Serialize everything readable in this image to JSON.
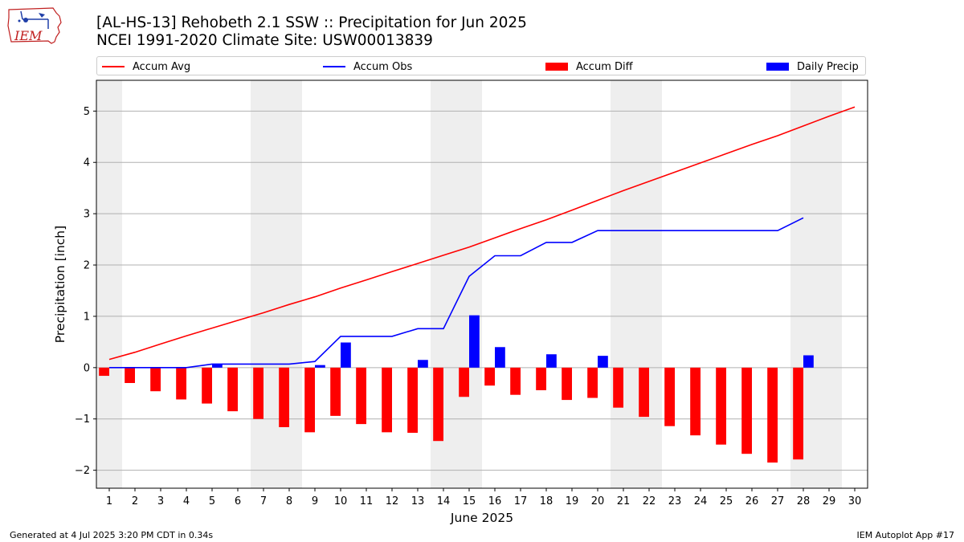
{
  "header": {
    "title": "[AL-HS-13] Rehobeth 2.1 SSW :: Precipitation for Jun 2025",
    "subtitle": "NCEI 1991-2020 Climate Site: USW00013839",
    "logo_text": "IEM"
  },
  "footer": {
    "left": "Generated at 4 Jul 2025 3:20 PM CDT in 0.34s",
    "right": "IEM Autoplot App #17"
  },
  "legend": {
    "items": [
      {
        "label": "Accum Avg",
        "color": "#ff0000",
        "kind": "line"
      },
      {
        "label": "Accum Obs",
        "color": "#0000ff",
        "kind": "line"
      },
      {
        "label": "Accum Diff",
        "color": "#ff0000",
        "kind": "box"
      },
      {
        "label": "Daily Precip",
        "color": "#0000ff",
        "kind": "box"
      }
    ]
  },
  "chart_data": {
    "type": "bar",
    "xlabel": "June 2025",
    "ylabel": "Precipitation [inch]",
    "xlim": [
      0.5,
      30.5
    ],
    "ylim": [
      -2.35,
      5.6
    ],
    "yticks": [
      -2,
      -1,
      0,
      1,
      2,
      3,
      4,
      5
    ],
    "ytick_labels": [
      "−2",
      "−1",
      "0",
      "1",
      "2",
      "3",
      "4",
      "5"
    ],
    "x": [
      1,
      2,
      3,
      4,
      5,
      6,
      7,
      8,
      9,
      10,
      11,
      12,
      13,
      14,
      15,
      16,
      17,
      18,
      19,
      20,
      21,
      22,
      23,
      24,
      25,
      26,
      27,
      28,
      29,
      30
    ],
    "grid": "horizontal",
    "weekend_shading": [
      [
        0.5,
        1.5
      ],
      [
        6.5,
        8.5
      ],
      [
        13.5,
        15.5
      ],
      [
        20.5,
        22.5
      ],
      [
        27.5,
        29.5
      ]
    ],
    "series": [
      {
        "name": "Accum Avg",
        "kind": "line",
        "color": "#ff0000",
        "values": [
          0.16,
          0.3,
          0.46,
          0.62,
          0.77,
          0.92,
          1.07,
          1.23,
          1.38,
          1.55,
          1.71,
          1.87,
          2.03,
          2.19,
          2.35,
          2.53,
          2.71,
          2.88,
          3.07,
          3.26,
          3.45,
          3.63,
          3.81,
          3.99,
          4.17,
          4.35,
          4.52,
          4.71,
          4.9,
          5.08
        ]
      },
      {
        "name": "Accum Obs",
        "kind": "line",
        "color": "#0000ff",
        "values": [
          0.0,
          0.0,
          0.0,
          0.0,
          0.07,
          0.07,
          0.07,
          0.07,
          0.12,
          0.61,
          0.61,
          0.61,
          0.76,
          0.76,
          1.78,
          2.18,
          2.18,
          2.44,
          2.44,
          2.67,
          2.67,
          2.67,
          2.67,
          2.67,
          2.67,
          2.67,
          2.67,
          2.92,
          null,
          null
        ]
      },
      {
        "name": "Accum Diff",
        "kind": "bar",
        "color": "#ff0000",
        "values": [
          -0.16,
          -0.3,
          -0.46,
          -0.62,
          -0.7,
          -0.85,
          -1.0,
          -1.16,
          -1.26,
          -0.94,
          -1.1,
          -1.26,
          -1.27,
          -1.43,
          -0.57,
          -0.35,
          -0.53,
          -0.44,
          -0.63,
          -0.59,
          -0.78,
          -0.96,
          -1.14,
          -1.32,
          -1.5,
          -1.68,
          -1.85,
          -1.79,
          null,
          null
        ]
      },
      {
        "name": "Daily Precip",
        "kind": "bar",
        "color": "#0000ff",
        "values": [
          0.0,
          0.0,
          0.0,
          0.0,
          0.07,
          0.0,
          0.0,
          0.0,
          0.05,
          0.49,
          0.0,
          0.0,
          0.15,
          0.0,
          1.02,
          0.4,
          0.0,
          0.26,
          0.0,
          0.23,
          0.0,
          0.0,
          0.0,
          0.0,
          0.0,
          0.0,
          0.0,
          0.24,
          null,
          null
        ]
      }
    ]
  }
}
